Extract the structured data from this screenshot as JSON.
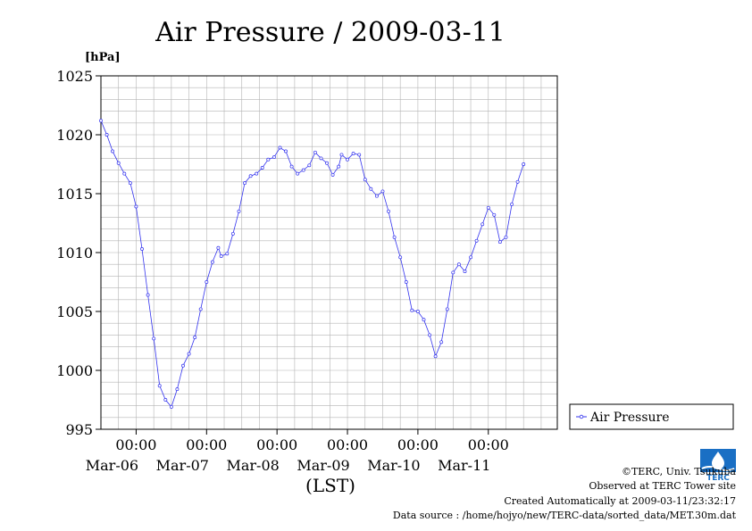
{
  "chart_data": {
    "type": "line",
    "title": "Air Pressure / 2009-03-11",
    "ylabel": "[hPa]",
    "xlabel": "(LST)",
    "ylim": [
      995,
      1025
    ],
    "yticks": [
      995,
      1000,
      1005,
      1010,
      1015,
      1020,
      1025
    ],
    "xlim": [
      "2009-03-05T12:00",
      "2009-03-11T23:30"
    ],
    "xticks": [
      {
        "time": "2009-03-06T00:00",
        "label": "00:00",
        "date": "Mar-06"
      },
      {
        "time": "2009-03-07T00:00",
        "label": "00:00",
        "date": "Mar-07"
      },
      {
        "time": "2009-03-08T00:00",
        "label": "00:00",
        "date": "Mar-08"
      },
      {
        "time": "2009-03-09T00:00",
        "label": "00:00",
        "date": "Mar-09"
      },
      {
        "time": "2009-03-10T00:00",
        "label": "00:00",
        "date": "Mar-10"
      },
      {
        "time": "2009-03-11T00:00",
        "label": "00:00",
        "date": "Mar-11"
      }
    ],
    "grid": true,
    "legend": "right",
    "series": [
      {
        "name": "Air Pressure",
        "color": "#3333ee",
        "marker": "circle",
        "points": [
          [
            "2009-03-05T12:00",
            1021.2
          ],
          [
            "2009-03-05T14:00",
            1020.0
          ],
          [
            "2009-03-05T16:00",
            1018.6
          ],
          [
            "2009-03-05T18:00",
            1017.6
          ],
          [
            "2009-03-05T20:00",
            1016.7
          ],
          [
            "2009-03-05T22:00",
            1015.9
          ],
          [
            "2009-03-06T00:00",
            1013.9
          ],
          [
            "2009-03-06T02:00",
            1010.3
          ],
          [
            "2009-03-06T04:00",
            1006.4
          ],
          [
            "2009-03-06T06:00",
            1002.7
          ],
          [
            "2009-03-06T08:00",
            998.7
          ],
          [
            "2009-03-06T10:00",
            997.5
          ],
          [
            "2009-03-06T12:00",
            996.9
          ],
          [
            "2009-03-06T14:00",
            998.4
          ],
          [
            "2009-03-06T16:00",
            1000.4
          ],
          [
            "2009-03-06T18:00",
            1001.4
          ],
          [
            "2009-03-06T20:00",
            1002.8
          ],
          [
            "2009-03-06T22:00",
            1005.2
          ],
          [
            "2009-03-07T00:00",
            1007.5
          ],
          [
            "2009-03-07T02:00",
            1009.2
          ],
          [
            "2009-03-07T04:00",
            1010.4
          ],
          [
            "2009-03-07T05:00",
            1009.7
          ],
          [
            "2009-03-07T07:00",
            1009.9
          ],
          [
            "2009-03-07T09:00",
            1011.6
          ],
          [
            "2009-03-07T11:00",
            1013.5
          ],
          [
            "2009-03-07T13:00",
            1015.9
          ],
          [
            "2009-03-07T15:00",
            1016.5
          ],
          [
            "2009-03-07T17:00",
            1016.7
          ],
          [
            "2009-03-07T19:00",
            1017.2
          ],
          [
            "2009-03-07T21:00",
            1017.9
          ],
          [
            "2009-03-07T23:00",
            1018.1
          ],
          [
            "2009-03-08T01:00",
            1018.9
          ],
          [
            "2009-03-08T03:00",
            1018.6
          ],
          [
            "2009-03-08T05:00",
            1017.3
          ],
          [
            "2009-03-08T07:00",
            1016.7
          ],
          [
            "2009-03-08T09:00",
            1017.0
          ],
          [
            "2009-03-08T11:00",
            1017.4
          ],
          [
            "2009-03-08T13:00",
            1018.5
          ],
          [
            "2009-03-08T15:00",
            1018.0
          ],
          [
            "2009-03-08T17:00",
            1017.6
          ],
          [
            "2009-03-08T19:00",
            1016.6
          ],
          [
            "2009-03-08T21:00",
            1017.3
          ],
          [
            "2009-03-08T22:00",
            1018.3
          ],
          [
            "2009-03-09T00:00",
            1017.9
          ],
          [
            "2009-03-09T02:00",
            1018.4
          ],
          [
            "2009-03-09T04:00",
            1018.3
          ],
          [
            "2009-03-09T06:00",
            1016.2
          ],
          [
            "2009-03-09T08:00",
            1015.4
          ],
          [
            "2009-03-09T10:00",
            1014.8
          ],
          [
            "2009-03-09T12:00",
            1015.2
          ],
          [
            "2009-03-09T14:00",
            1013.5
          ],
          [
            "2009-03-09T16:00",
            1011.3
          ],
          [
            "2009-03-09T18:00",
            1009.6
          ],
          [
            "2009-03-09T20:00",
            1007.5
          ],
          [
            "2009-03-09T22:00",
            1005.1
          ],
          [
            "2009-03-10T00:00",
            1005.0
          ],
          [
            "2009-03-10T02:00",
            1004.3
          ],
          [
            "2009-03-10T04:00",
            1003.0
          ],
          [
            "2009-03-10T06:00",
            1001.2
          ],
          [
            "2009-03-10T08:00",
            1002.4
          ],
          [
            "2009-03-10T10:00",
            1005.2
          ],
          [
            "2009-03-10T12:00",
            1008.3
          ],
          [
            "2009-03-10T14:00",
            1009.0
          ],
          [
            "2009-03-10T16:00",
            1008.4
          ],
          [
            "2009-03-10T18:00",
            1009.6
          ],
          [
            "2009-03-10T20:00",
            1011.0
          ],
          [
            "2009-03-10T22:00",
            1012.4
          ],
          [
            "2009-03-11T00:00",
            1013.8
          ],
          [
            "2009-03-11T02:00",
            1013.2
          ],
          [
            "2009-03-11T04:00",
            1010.9
          ],
          [
            "2009-03-11T06:00",
            1011.3
          ],
          [
            "2009-03-11T08:00",
            1014.1
          ],
          [
            "2009-03-11T10:00",
            1016.0
          ],
          [
            "2009-03-11T12:00",
            1017.5
          ]
        ]
      }
    ]
  },
  "footer": {
    "copyright": "©TERC, Univ. Tsukuba",
    "observed": "Observed at TERC Tower site",
    "created": "Created Automatically at 2009-03-11/23:32:17",
    "source": "Data source : /home/hojyo/new/TERC-data/sorted_data/MET.30m.dat",
    "logo_text": "TERC",
    "logo_color": "#1a6fc4"
  }
}
